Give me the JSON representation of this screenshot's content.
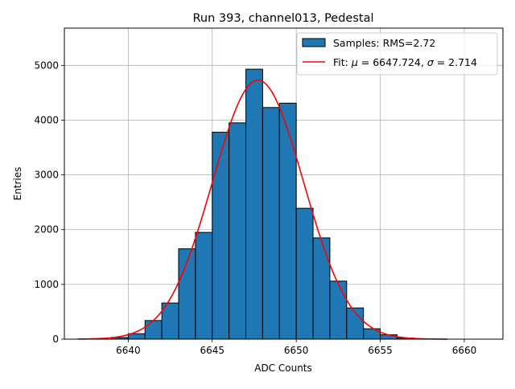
{
  "chart_data": {
    "type": "bar",
    "title": "Run 393, channel013, Pedestal",
    "xlabel": "ADC Counts",
    "ylabel": "Entries",
    "xlim": [
      6636.2,
      6662.3
    ],
    "ylim": [
      0,
      5680
    ],
    "xticks": [
      6640,
      6645,
      6650,
      6655,
      6660
    ],
    "yticks": [
      0,
      1000,
      2000,
      3000,
      4000,
      5000
    ],
    "grid": true,
    "legend_position": "top-right",
    "bin_width": 1,
    "bins": [
      {
        "x": 6639,
        "value": 30
      },
      {
        "x": 6640,
        "value": 100
      },
      {
        "x": 6641,
        "value": 340
      },
      {
        "x": 6642,
        "value": 660
      },
      {
        "x": 6643,
        "value": 1650
      },
      {
        "x": 6644,
        "value": 1950
      },
      {
        "x": 6645,
        "value": 3780
      },
      {
        "x": 6646,
        "value": 3950
      },
      {
        "x": 6647,
        "value": 4930
      },
      {
        "x": 6648,
        "value": 4230
      },
      {
        "x": 6649,
        "value": 4310
      },
      {
        "x": 6650,
        "value": 2390
      },
      {
        "x": 6651,
        "value": 1850
      },
      {
        "x": 6652,
        "value": 1060
      },
      {
        "x": 6653,
        "value": 570
      },
      {
        "x": 6654,
        "value": 190
      },
      {
        "x": 6655,
        "value": 80
      },
      {
        "x": 6656,
        "value": 20
      },
      {
        "x": 6657,
        "value": 8
      }
    ],
    "fit": {
      "mu": 6647.724,
      "sigma": 2.714,
      "amplitude": 4730,
      "x_range": [
        6637,
        6659
      ]
    },
    "legend": [
      {
        "label": "Samples: RMS=2.72",
        "kind": "patch",
        "color": "#1f77b4"
      },
      {
        "label_prefix": "Fit: ",
        "label_rest": " = 6647.724, ",
        "label_end": " = 2.714",
        "kind": "line",
        "color": "#ff0000"
      }
    ],
    "colors": {
      "bar": "#1f77b4",
      "bar_edge": "#000000",
      "fit": "#ff0000",
      "grid": "#b0b0b0"
    }
  }
}
